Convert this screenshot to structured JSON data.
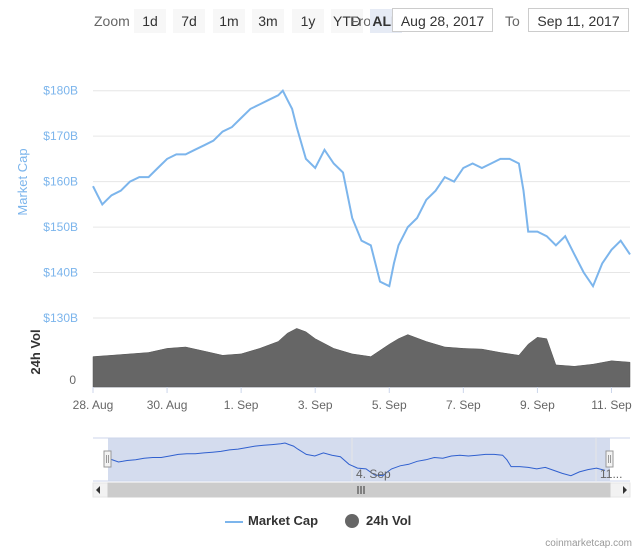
{
  "zoom": {
    "label": "Zoom",
    "buttons": [
      "1d",
      "7d",
      "1m",
      "3m",
      "1y",
      "YTD",
      "ALL"
    ],
    "active": "ALL"
  },
  "range": {
    "from_label": "From",
    "from_value": "Aug 28, 2017",
    "to_label": "To",
    "to_value": "Sep 11, 2017"
  },
  "colors": {
    "market_cap": "#7cb5ec",
    "volume": "#666666",
    "navigator_fill": "#ccd6eb",
    "navigator_line": "#3060cf"
  },
  "chart_data": {
    "type": "line",
    "x_tick_labels": [
      "28. Aug",
      "30. Aug",
      "1. Sep",
      "3. Sep",
      "5. Sep",
      "7. Sep",
      "9. Sep",
      "11. Sep"
    ],
    "navigator_tick_labels": [
      "4. Sep",
      "11..."
    ],
    "y_axis": {
      "title": "Market Cap",
      "tick_labels": [
        "$130B",
        "$140B",
        "$150B",
        "$160B",
        "$170B",
        "$180B"
      ],
      "ylim": [
        130,
        185
      ]
    },
    "volume_axis": {
      "title": "24h Vol",
      "tick_labels": [
        "0"
      ]
    },
    "xlim": [
      "2017-08-28",
      "2017-09-11T12:00"
    ],
    "series": [
      {
        "name": "Market Cap",
        "unit": "$B",
        "x": [
          "2017-08-28T00:00",
          "2017-08-28T03:00",
          "2017-08-28T06:00",
          "2017-08-28T09:00",
          "2017-08-28T12:00",
          "2017-08-28T18:00",
          "2017-08-29T00:00",
          "2017-08-29T06:00",
          "2017-08-29T12:00",
          "2017-08-29T18:00",
          "2017-08-30T00:00",
          "2017-08-30T06:00",
          "2017-08-30T12:00",
          "2017-08-30T18:00",
          "2017-08-31T00:00",
          "2017-08-31T06:00",
          "2017-08-31T12:00",
          "2017-08-31T18:00",
          "2017-09-01T00:00",
          "2017-09-01T06:00",
          "2017-09-01T12:00",
          "2017-09-01T18:00",
          "2017-09-02T00:00",
          "2017-09-02T03:00",
          "2017-09-02T06:00",
          "2017-09-02T09:00",
          "2017-09-02T12:00",
          "2017-09-02T18:00",
          "2017-09-03T00:00",
          "2017-09-03T06:00",
          "2017-09-03T12:00",
          "2017-09-03T18:00",
          "2017-09-04T00:00",
          "2017-09-04T06:00",
          "2017-09-04T12:00",
          "2017-09-04T18:00",
          "2017-09-05T00:00",
          "2017-09-05T03:00",
          "2017-09-05T06:00",
          "2017-09-05T12:00",
          "2017-09-05T18:00",
          "2017-09-06T00:00",
          "2017-09-06T06:00",
          "2017-09-06T12:00",
          "2017-09-06T18:00",
          "2017-09-07T00:00",
          "2017-09-07T06:00",
          "2017-09-07T12:00",
          "2017-09-07T18:00",
          "2017-09-08T00:00",
          "2017-09-08T06:00",
          "2017-09-08T12:00",
          "2017-09-08T15:00",
          "2017-09-08T18:00",
          "2017-09-09T00:00",
          "2017-09-09T06:00",
          "2017-09-09T12:00",
          "2017-09-09T18:00",
          "2017-09-10T00:00",
          "2017-09-10T06:00",
          "2017-09-10T12:00",
          "2017-09-10T18:00",
          "2017-09-11T00:00",
          "2017-09-11T06:00",
          "2017-09-11T12:00"
        ],
        "values": [
          159,
          157,
          155,
          156,
          157,
          158,
          160,
          161,
          161,
          163,
          165,
          166,
          166,
          167,
          168,
          169,
          171,
          172,
          174,
          176,
          177,
          178,
          179,
          180,
          178,
          176,
          172,
          165,
          163,
          167,
          164,
          162,
          152,
          147,
          146,
          138,
          137,
          142,
          146,
          150,
          152,
          156,
          158,
          161,
          160,
          163,
          164,
          163,
          164,
          165,
          165,
          164,
          158,
          149,
          149,
          148,
          146,
          148,
          144,
          140,
          137,
          142,
          145,
          147,
          144
        ]
      },
      {
        "name": "24h Vol",
        "x": [
          "2017-08-28T00:00",
          "2017-08-28T12:00",
          "2017-08-29T00:00",
          "2017-08-29T12:00",
          "2017-08-30T00:00",
          "2017-08-30T12:00",
          "2017-08-31T00:00",
          "2017-08-31T12:00",
          "2017-09-01T00:00",
          "2017-09-01T12:00",
          "2017-09-02T00:00",
          "2017-09-02T06:00",
          "2017-09-02T12:00",
          "2017-09-02T18:00",
          "2017-09-03T00:00",
          "2017-09-03T12:00",
          "2017-09-04T00:00",
          "2017-09-04T12:00",
          "2017-09-05T00:00",
          "2017-09-05T06:00",
          "2017-09-05T12:00",
          "2017-09-06T00:00",
          "2017-09-06T12:00",
          "2017-09-07T00:00",
          "2017-09-07T12:00",
          "2017-09-08T00:00",
          "2017-09-08T12:00",
          "2017-09-08T18:00",
          "2017-09-09T00:00",
          "2017-09-09T06:00",
          "2017-09-09T12:00",
          "2017-09-10T00:00",
          "2017-09-10T12:00",
          "2017-09-11T00:00",
          "2017-09-11T12:00"
        ],
        "values": [
          0.44,
          0.46,
          0.48,
          0.5,
          0.56,
          0.58,
          0.52,
          0.46,
          0.48,
          0.56,
          0.66,
          0.78,
          0.85,
          0.8,
          0.7,
          0.56,
          0.48,
          0.44,
          0.62,
          0.7,
          0.76,
          0.66,
          0.58,
          0.56,
          0.55,
          0.5,
          0.46,
          0.62,
          0.72,
          0.7,
          0.32,
          0.3,
          0.33,
          0.38,
          0.36
        ]
      }
    ],
    "legend": [
      "Market Cap",
      "24h Vol"
    ],
    "legend_position": "bottom",
    "grid": true
  },
  "credit": "coinmarketcap.com"
}
